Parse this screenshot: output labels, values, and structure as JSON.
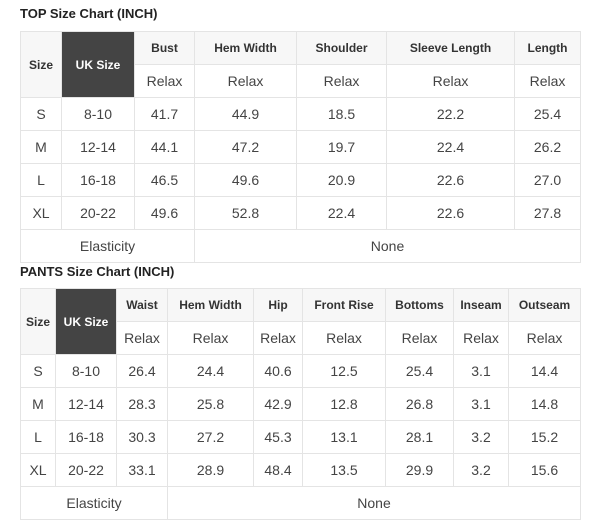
{
  "top": {
    "title": "TOP Size Chart (INCH)",
    "size_header": "Size",
    "uk_header": "UK Size",
    "columns": [
      "Bust",
      "Hem Width",
      "Shoulder",
      "Sleeve Length",
      "Length"
    ],
    "sub": "Relax",
    "rows": [
      {
        "size": "S",
        "uk": "8-10",
        "values": [
          "41.7",
          "44.9",
          "18.5",
          "22.2",
          "25.4"
        ]
      },
      {
        "size": "M",
        "uk": "12-14",
        "values": [
          "44.1",
          "47.2",
          "19.7",
          "22.4",
          "26.2"
        ]
      },
      {
        "size": "L",
        "uk": "16-18",
        "values": [
          "46.5",
          "49.6",
          "20.9",
          "22.6",
          "27.0"
        ]
      },
      {
        "size": "XL",
        "uk": "20-22",
        "values": [
          "49.6",
          "52.8",
          "22.4",
          "22.6",
          "27.8"
        ]
      }
    ],
    "elasticity_label": "Elasticity",
    "elasticity_value": "None"
  },
  "pants": {
    "title": "PANTS Size Chart (INCH)",
    "size_header": "Size",
    "uk_header": "UK Size",
    "columns": [
      "Waist",
      "Hem Width",
      "Hip",
      "Front Rise",
      "Bottoms",
      "Inseam",
      "Outseam"
    ],
    "sub": "Relax",
    "rows": [
      {
        "size": "S",
        "uk": "8-10",
        "values": [
          "26.4",
          "24.4",
          "40.6",
          "12.5",
          "25.4",
          "3.1",
          "14.4"
        ]
      },
      {
        "size": "M",
        "uk": "12-14",
        "values": [
          "28.3",
          "25.8",
          "42.9",
          "12.8",
          "26.8",
          "3.1",
          "14.8"
        ]
      },
      {
        "size": "L",
        "uk": "16-18",
        "values": [
          "30.3",
          "27.2",
          "45.3",
          "13.1",
          "28.1",
          "3.2",
          "15.2"
        ]
      },
      {
        "size": "XL",
        "uk": "20-22",
        "values": [
          "33.1",
          "28.9",
          "48.4",
          "13.5",
          "29.9",
          "3.2",
          "15.6"
        ]
      }
    ],
    "elasticity_label": "Elasticity",
    "elasticity_value": "None"
  }
}
